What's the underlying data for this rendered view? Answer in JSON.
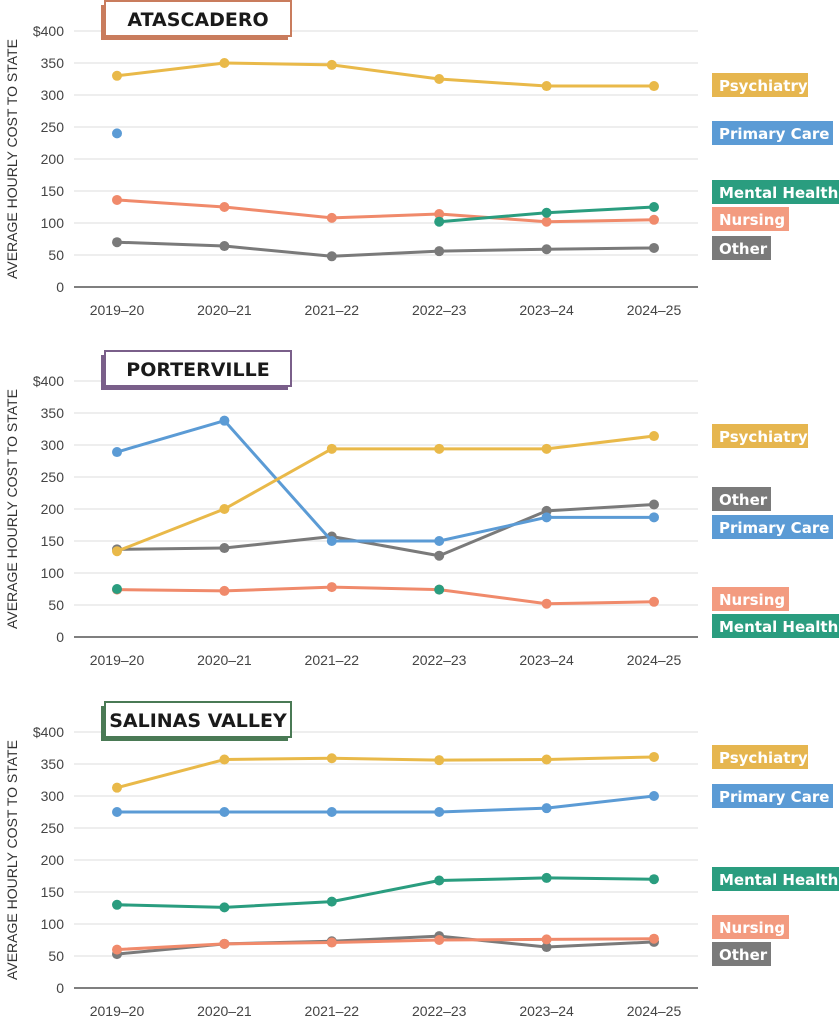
{
  "chart_data": [
    {
      "type": "line",
      "title": "ATASCADERO",
      "title_color": "#c97c5d",
      "ylabel": "AVERAGE HOURLY COST TO STATE",
      "ylim": [
        0,
        400
      ],
      "yticks": [
        "0",
        "50",
        "100",
        "150",
        "200",
        "250",
        "300",
        "350",
        "$400"
      ],
      "categories": [
        "2019–20",
        "2020–21",
        "2021–22",
        "2022–23",
        "2023–24",
        "2024–25"
      ],
      "grid": true,
      "legend": "right (labels beside line ends)",
      "series": [
        {
          "name": "Psychiatry",
          "color": "#e9b949",
          "values": [
            330,
            350,
            347,
            325,
            314,
            314
          ]
        },
        {
          "name": "Primary Care",
          "color": "#5b9bd5",
          "values": [
            240,
            null,
            null,
            null,
            null,
            null
          ]
        },
        {
          "name": "Mental Health",
          "color": "#2a9d7f",
          "values": [
            null,
            null,
            null,
            102,
            116,
            125
          ]
        },
        {
          "name": "Nursing",
          "color": "#f08a6b",
          "values": [
            136,
            125,
            108,
            114,
            102,
            105
          ]
        },
        {
          "name": "Other",
          "color": "#7a7a7a",
          "values": [
            70,
            64,
            48,
            56,
            59,
            61
          ]
        }
      ]
    },
    {
      "type": "line",
      "title": "PORTERVILLE",
      "title_color": "#7a5f8a",
      "ylabel": "AVERAGE HOURLY COST TO STATE",
      "ylim": [
        0,
        400
      ],
      "yticks": [
        "0",
        "50",
        "100",
        "150",
        "200",
        "250",
        "300",
        "350",
        "$400"
      ],
      "categories": [
        "2019–20",
        "2020–21",
        "2021–22",
        "2022–23",
        "2023–24",
        "2024–25"
      ],
      "grid": true,
      "legend": "right (labels beside line ends)",
      "series": [
        {
          "name": "Psychiatry",
          "color": "#e9b949",
          "values": [
            134,
            200,
            294,
            294,
            294,
            314
          ]
        },
        {
          "name": "Other",
          "color": "#7a7a7a",
          "values": [
            137,
            139,
            157,
            127,
            197,
            207
          ]
        },
        {
          "name": "Primary Care",
          "color": "#5b9bd5",
          "values": [
            289,
            338,
            150,
            150,
            187,
            187
          ]
        },
        {
          "name": "Nursing",
          "color": "#f08a6b",
          "values": [
            74,
            72,
            78,
            74,
            52,
            55
          ]
        },
        {
          "name": "Mental Health",
          "color": "#2a9d7f",
          "values": [
            75,
            null,
            null,
            74,
            null,
            null
          ]
        }
      ]
    },
    {
      "type": "line",
      "title": "SALINAS VALLEY",
      "title_color": "#4a7a55",
      "ylabel": "AVERAGE HOURLY COST TO STATE",
      "ylim": [
        0,
        400
      ],
      "yticks": [
        "0",
        "50",
        "100",
        "150",
        "200",
        "250",
        "300",
        "350",
        "$400"
      ],
      "categories": [
        "2019–20",
        "2020–21",
        "2021–22",
        "2022–23",
        "2023–24",
        "2024–25"
      ],
      "grid": true,
      "legend": "right (labels beside line ends)",
      "series": [
        {
          "name": "Psychiatry",
          "color": "#e9b949",
          "values": [
            313,
            357,
            359,
            356,
            357,
            361
          ]
        },
        {
          "name": "Primary Care",
          "color": "#5b9bd5",
          "values": [
            275,
            275,
            275,
            275,
            281,
            300
          ]
        },
        {
          "name": "Mental Health",
          "color": "#2a9d7f",
          "values": [
            130,
            126,
            135,
            168,
            172,
            170
          ]
        },
        {
          "name": "Nursing",
          "color": "#f08a6b",
          "values": [
            60,
            69,
            71,
            75,
            76,
            77
          ]
        },
        {
          "name": "Other",
          "color": "#7a7a7a",
          "values": [
            53,
            69,
            73,
            81,
            64,
            72
          ]
        }
      ]
    }
  ],
  "legend_colors": {
    "Psychiatry": "#e6b64f",
    "Primary Care": "#5b9bd5",
    "Mental Health": "#2a9d7f",
    "Nursing": "#f39b80",
    "Other": "#7a7a7a"
  }
}
